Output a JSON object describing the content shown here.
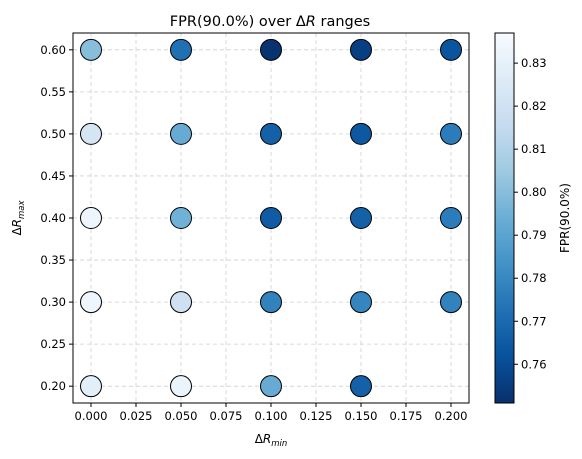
{
  "chart_data": {
    "type": "scatter",
    "title": "FPR(90.0%) over ΔR ranges",
    "title_parts": [
      "FPR(90.0%) over Δ",
      "R",
      " ranges"
    ],
    "xlabel": "ΔR_min",
    "xlabel_parts": [
      "Δ",
      "R",
      "min"
    ],
    "ylabel": "ΔR_max",
    "ylabel_parts": [
      "Δ",
      "R",
      "max"
    ],
    "xlim": [
      -0.01,
      0.21
    ],
    "ylim": [
      0.18,
      0.62
    ],
    "xticks": [
      0.0,
      0.025,
      0.05,
      0.075,
      0.1,
      0.125,
      0.15,
      0.175,
      0.2
    ],
    "xtick_labels": [
      "0.000",
      "0.025",
      "0.050",
      "0.075",
      "0.100",
      "0.125",
      "0.150",
      "0.175",
      "0.200"
    ],
    "yticks": [
      0.2,
      0.25,
      0.3,
      0.35,
      0.4,
      0.45,
      0.5,
      0.55,
      0.6
    ],
    "ytick_labels": [
      "0.20",
      "0.25",
      "0.30",
      "0.35",
      "0.40",
      "0.45",
      "0.50",
      "0.55",
      "0.60"
    ],
    "grid": true,
    "colormap": "Blues_r",
    "colorbar": {
      "label": "FPR(90.0%)",
      "min": 0.751,
      "max": 0.837,
      "ticks": [
        0.76,
        0.77,
        0.78,
        0.79,
        0.8,
        0.81,
        0.82,
        0.83
      ],
      "tick_labels": [
        "0.76",
        "0.77",
        "0.78",
        "0.79",
        "0.80",
        "0.81",
        "0.82",
        "0.83"
      ]
    },
    "points": [
      {
        "x": 0.0,
        "y": 0.2,
        "fpr": 0.828
      },
      {
        "x": 0.0,
        "y": 0.3,
        "fpr": 0.833
      },
      {
        "x": 0.0,
        "y": 0.4,
        "fpr": 0.833
      },
      {
        "x": 0.0,
        "y": 0.5,
        "fpr": 0.822
      },
      {
        "x": 0.0,
        "y": 0.6,
        "fpr": 0.8
      },
      {
        "x": 0.05,
        "y": 0.2,
        "fpr": 0.832
      },
      {
        "x": 0.05,
        "y": 0.3,
        "fpr": 0.819
      },
      {
        "x": 0.05,
        "y": 0.4,
        "fpr": 0.795
      },
      {
        "x": 0.05,
        "y": 0.5,
        "fpr": 0.793
      },
      {
        "x": 0.05,
        "y": 0.6,
        "fpr": 0.772
      },
      {
        "x": 0.1,
        "y": 0.2,
        "fpr": 0.793
      },
      {
        "x": 0.1,
        "y": 0.3,
        "fpr": 0.778
      },
      {
        "x": 0.1,
        "y": 0.4,
        "fpr": 0.765
      },
      {
        "x": 0.1,
        "y": 0.5,
        "fpr": 0.767
      },
      {
        "x": 0.1,
        "y": 0.6,
        "fpr": 0.752
      },
      {
        "x": 0.15,
        "y": 0.2,
        "fpr": 0.767
      },
      {
        "x": 0.15,
        "y": 0.3,
        "fpr": 0.779
      },
      {
        "x": 0.15,
        "y": 0.4,
        "fpr": 0.767
      },
      {
        "x": 0.15,
        "y": 0.5,
        "fpr": 0.764
      },
      {
        "x": 0.15,
        "y": 0.6,
        "fpr": 0.756
      },
      {
        "x": 0.2,
        "y": 0.3,
        "fpr": 0.778
      },
      {
        "x": 0.2,
        "y": 0.4,
        "fpr": 0.776
      },
      {
        "x": 0.2,
        "y": 0.5,
        "fpr": 0.776
      },
      {
        "x": 0.2,
        "y": 0.6,
        "fpr": 0.763
      }
    ]
  }
}
